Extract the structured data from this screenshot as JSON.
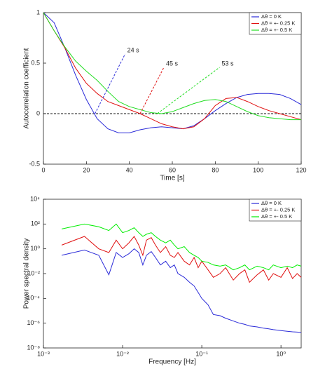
{
  "chart_data": [
    {
      "type": "line",
      "xlabel": "Time [s]",
      "ylabel": "Autocorrelation coefficient",
      "x": [
        0,
        5,
        10,
        15,
        20,
        25,
        30,
        35,
        40,
        45,
        50,
        55,
        60,
        65,
        70,
        75,
        80,
        85,
        90,
        95,
        100,
        105,
        110,
        115,
        120
      ],
      "series": [
        {
          "name": "Δθ = 0 K",
          "color": "#2a2ad8",
          "values": [
            1,
            0.9,
            0.65,
            0.38,
            0.14,
            -0.05,
            -0.15,
            -0.19,
            -0.19,
            -0.16,
            -0.14,
            -0.13,
            -0.14,
            -0.15,
            -0.12,
            -0.05,
            0.03,
            0.1,
            0.16,
            0.19,
            0.2,
            0.2,
            0.19,
            0.15,
            0.09
          ]
        },
        {
          "name": "Δθ = +- 0.25 K",
          "color": "#e01010",
          "values": [
            1,
            0.82,
            0.65,
            0.45,
            0.3,
            0.2,
            0.12,
            0.08,
            0.04,
            0.0,
            -0.05,
            -0.1,
            -0.13,
            -0.15,
            -0.13,
            -0.05,
            0.08,
            0.15,
            0.16,
            0.12,
            0.07,
            0.03,
            0.0,
            -0.03,
            -0.06
          ]
        },
        {
          "name": "Δθ = +- 0.5 K",
          "color": "#22dd22",
          "values": [
            1,
            0.82,
            0.66,
            0.52,
            0.42,
            0.33,
            0.22,
            0.12,
            0.07,
            0.04,
            0.01,
            0.0,
            0.02,
            0.06,
            0.1,
            0.13,
            0.14,
            0.12,
            0.07,
            0.02,
            -0.02,
            -0.04,
            -0.05,
            -0.06,
            -0.06
          ]
        }
      ],
      "hline": 0,
      "annotations": [
        {
          "text": "24 s",
          "x": 24,
          "color": "#2a2ad8"
        },
        {
          "text": "45 s",
          "x": 45,
          "color": "#e01010"
        },
        {
          "text": "53 s",
          "x": 53,
          "color": "#22dd22"
        }
      ],
      "xlim": [
        0,
        120
      ],
      "xticks": [
        0,
        20,
        40,
        60,
        80,
        100,
        120
      ],
      "ylim": [
        -0.5,
        1
      ],
      "yticks": [
        -0.5,
        0,
        0.5,
        1
      ],
      "legend": "upper right"
    },
    {
      "type": "line",
      "xlabel": "Frequency [Hz]",
      "ylabel": "Power spectral density",
      "xscale": "log",
      "yscale": "log",
      "x": [
        0.0017,
        0.0033,
        0.005,
        0.0067,
        0.0083,
        0.01,
        0.012,
        0.014,
        0.016,
        0.018,
        0.02,
        0.023,
        0.026,
        0.03,
        0.035,
        0.04,
        0.045,
        0.05,
        0.06,
        0.07,
        0.08,
        0.09,
        0.1,
        0.12,
        0.14,
        0.17,
        0.2,
        0.25,
        0.3,
        0.35,
        0.4,
        0.5,
        0.6,
        0.7,
        0.8,
        1.0,
        1.2,
        1.4,
        1.6,
        1.8
      ],
      "series": [
        {
          "name": "Δθ = 0 K",
          "color": "#2a2ad8",
          "values": [
            0.3,
            0.8,
            0.3,
            0.008,
            0.5,
            0.2,
            0.4,
            1,
            0.5,
            0.05,
            0.3,
            0.6,
            0.2,
            0.05,
            0.1,
            0.03,
            0.05,
            0.01,
            0.005,
            0.002,
            0.001,
            0.0003,
            0.0001,
            3e-05,
            5e-06,
            4e-06,
            2.5e-06,
            1.5e-06,
            1e-06,
            8e-07,
            6e-07,
            5e-07,
            4e-07,
            3.5e-07,
            3e-07,
            2.5e-07,
            2.2e-07,
            2e-07,
            1.9e-07,
            1.8e-07
          ]
        },
        {
          "name": "Δθ = +- 0.25 K",
          "color": "#e01010",
          "values": [
            2,
            10,
            1,
            0.5,
            5,
            1,
            3,
            10,
            2,
            0.3,
            5,
            8,
            2,
            0.5,
            1.5,
            0.3,
            0.2,
            0.5,
            0.1,
            0.05,
            0.2,
            0.03,
            0.1,
            0.02,
            0.005,
            0.01,
            0.03,
            0.003,
            0.01,
            0.02,
            0.002,
            0.008,
            0.02,
            0.003,
            0.01,
            0.005,
            0.03,
            0.004,
            0.01,
            0.005
          ]
        },
        {
          "name": "Δθ = +- 0.5 K",
          "color": "#00ee00",
          "values": [
            40,
            100,
            60,
            30,
            100,
            20,
            30,
            50,
            20,
            10,
            15,
            20,
            10,
            5,
            3,
            5,
            2,
            1,
            1.5,
            0.5,
            0.3,
            0.2,
            0.1,
            0.08,
            0.05,
            0.04,
            0.05,
            0.02,
            0.03,
            0.05,
            0.02,
            0.04,
            0.03,
            0.02,
            0.05,
            0.03,
            0.04,
            0.03,
            0.05,
            0.04
          ]
        }
      ],
      "xlim": [
        0.001,
        1.8
      ],
      "xticks": [
        {
          "value": 0.001,
          "label": "10⁻³"
        },
        {
          "value": 0.01,
          "label": "10⁻²"
        },
        {
          "value": 0.1,
          "label": "10⁻¹"
        },
        {
          "value": 1,
          "label": "10⁰"
        }
      ],
      "ylim": [
        1e-08,
        10000
      ],
      "yticks": [
        {
          "value": 1e-08,
          "label": "10⁻⁸"
        },
        {
          "value": 1e-06,
          "label": "10⁻⁶"
        },
        {
          "value": 0.0001,
          "label": "10⁻⁴"
        },
        {
          "value": 0.01,
          "label": "10⁻²"
        },
        {
          "value": 1,
          "label": "10⁰"
        },
        {
          "value": 100,
          "label": "10²"
        },
        {
          "value": 10000,
          "label": "10⁴"
        }
      ],
      "legend": "upper right"
    }
  ]
}
